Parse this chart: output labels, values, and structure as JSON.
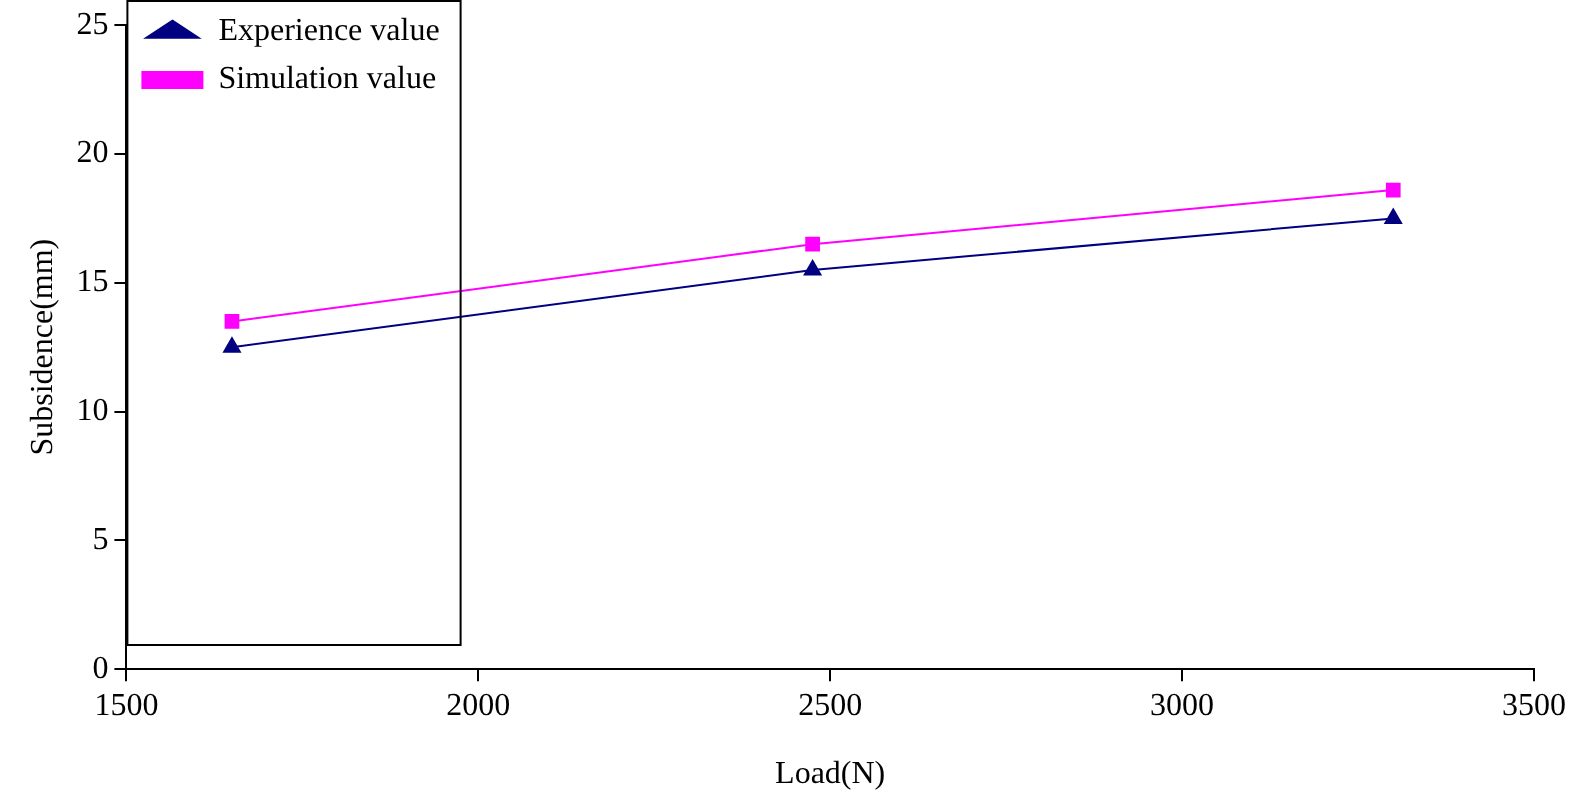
{
  "chart_data": {
    "type": "line",
    "xlabel": "Load(N)",
    "ylabel": "Subsidence(mm)",
    "xlim": [
      1500,
      3500
    ],
    "xticks": [
      1500,
      2000,
      2500,
      3000,
      3500
    ],
    "ylim": [
      0,
      25
    ],
    "yticks": [
      0,
      5,
      10,
      15,
      20,
      25
    ],
    "grid": false,
    "legend": "top left",
    "line_style": "solid",
    "series": [
      {
        "name": "Experience value",
        "color": "#000080",
        "marker": "triangle",
        "x": [
          1650,
          2475,
          3300
        ],
        "values": [
          12.5,
          15.5,
          17.5
        ]
      },
      {
        "name": "Simulation value",
        "color": "#ff00ff",
        "marker": "square",
        "x": [
          1650,
          2475,
          3300
        ],
        "values": [
          13.5,
          16.5,
          18.6
        ]
      }
    ]
  }
}
